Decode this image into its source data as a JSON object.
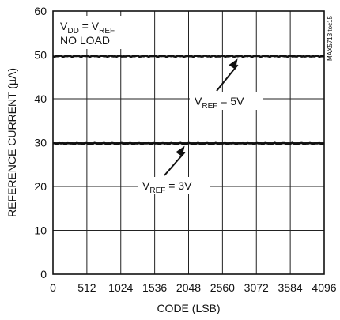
{
  "chart_data": {
    "type": "line",
    "xlabel": "CODE (LSB)",
    "ylabel": "REFERENCE CURRENT (µA)",
    "xlim": [
      0,
      4096
    ],
    "ylim": [
      0,
      60
    ],
    "xticks": [
      0,
      512,
      1024,
      1536,
      2048,
      2560,
      3072,
      3584,
      4096
    ],
    "yticks": [
      0,
      10,
      20,
      30,
      40,
      50,
      60
    ],
    "grid": true,
    "series": [
      {
        "x": [
          0,
          4096
        ],
        "y": [
          49.7,
          49.7
        ]
      },
      {
        "x": [
          0,
          4096
        ],
        "y": [
          29.8,
          29.8
        ]
      }
    ],
    "annotations": {
      "condition_line1": {
        "a": "V",
        "a_sub": "DD",
        "b": " = V",
        "b_sub": "REF"
      },
      "condition_line2": "NO LOAD",
      "label_5v": {
        "a": "V",
        "a_sub": "REF",
        "b": " = 5V",
        "arrow_to_x": 2790
      },
      "label_3v": {
        "a": "V",
        "a_sub": "REF",
        "b": " = 3V",
        "arrow_to_x": 1990
      }
    },
    "figure_id": "MAX5713 toc15",
    "line_color": "#111111",
    "grid_color": "#222222"
  }
}
